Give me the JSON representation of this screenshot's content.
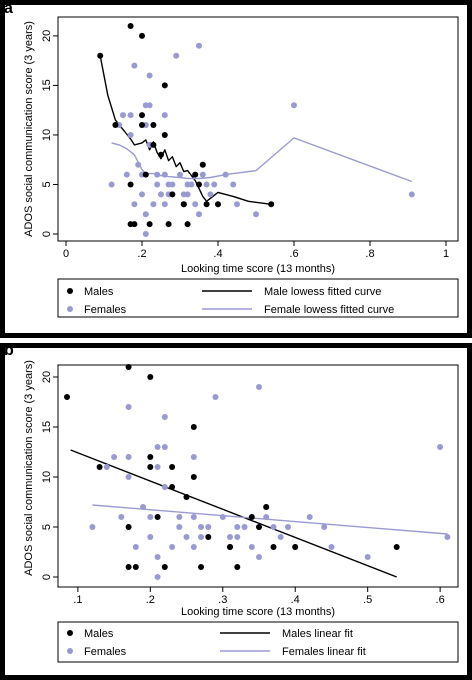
{
  "figure": {
    "panel_a_letter": "a",
    "panel_b_letter": "b"
  },
  "colors": {
    "male": "#000000",
    "female": "#9a9ad2",
    "frame": "#000000"
  },
  "chart_data": [
    {
      "type": "scatter",
      "panel": "a",
      "xlabel": "Looking time score (13 months)",
      "ylabel": "ADOS social communication score (3 years)",
      "xlim": [
        0,
        1
      ],
      "ylim": [
        0,
        21
      ],
      "xticks": [
        0,
        0.2,
        0.4,
        0.6,
        0.8,
        1
      ],
      "xtick_labels": [
        "0",
        ".2",
        ".4",
        ".6",
        ".8",
        "1"
      ],
      "yticks": [
        0,
        5,
        10,
        15,
        20
      ],
      "ytick_labels": [
        "0",
        "5",
        "10",
        "15",
        "20"
      ],
      "grid": false,
      "legend": {
        "placement": "bottom",
        "entries": [
          {
            "label": "Males",
            "kind": "marker",
            "series": "male"
          },
          {
            "label": "Male lowess fitted curve",
            "kind": "line",
            "series": "male"
          },
          {
            "label": "Females",
            "kind": "marker",
            "series": "female"
          },
          {
            "label": "Female lowess fitted curve",
            "kind": "line",
            "series": "female"
          }
        ]
      },
      "scatter_series": [
        {
          "name": "Males",
          "color_key": "male",
          "points": [
            [
              0.09,
              18
            ],
            [
              0.13,
              11
            ],
            [
              0.17,
              21
            ],
            [
              0.17,
              5
            ],
            [
              0.17,
              1
            ],
            [
              0.18,
              1
            ],
            [
              0.2,
              20
            ],
            [
              0.2,
              12
            ],
            [
              0.2,
              11
            ],
            [
              0.21,
              6
            ],
            [
              0.22,
              1
            ],
            [
              0.23,
              11
            ],
            [
              0.23,
              9
            ],
            [
              0.25,
              8
            ],
            [
              0.26,
              15
            ],
            [
              0.26,
              10
            ],
            [
              0.27,
              1
            ],
            [
              0.28,
              4
            ],
            [
              0.31,
              3
            ],
            [
              0.31,
              3
            ],
            [
              0.32,
              1
            ],
            [
              0.34,
              6
            ],
            [
              0.35,
              5
            ],
            [
              0.36,
              7
            ],
            [
              0.37,
              3
            ],
            [
              0.4,
              3
            ],
            [
              0.54,
              3
            ]
          ]
        },
        {
          "name": "Females",
          "color_key": "female",
          "points": [
            [
              0.12,
              5
            ],
            [
              0.14,
              11
            ],
            [
              0.15,
              12
            ],
            [
              0.16,
              6
            ],
            [
              0.17,
              12
            ],
            [
              0.17,
              10
            ],
            [
              0.18,
              17
            ],
            [
              0.18,
              3
            ],
            [
              0.19,
              7
            ],
            [
              0.2,
              4
            ],
            [
              0.2,
              6
            ],
            [
              0.21,
              2
            ],
            [
              0.21,
              0
            ],
            [
              0.21,
              13
            ],
            [
              0.21,
              11
            ],
            [
              0.22,
              16
            ],
            [
              0.22,
              9
            ],
            [
              0.22,
              13
            ],
            [
              0.23,
              3
            ],
            [
              0.24,
              6
            ],
            [
              0.24,
              5
            ],
            [
              0.25,
              8
            ],
            [
              0.25,
              4
            ],
            [
              0.26,
              12
            ],
            [
              0.26,
              3
            ],
            [
              0.26,
              6
            ],
            [
              0.27,
              5
            ],
            [
              0.27,
              4
            ],
            [
              0.28,
              5
            ],
            [
              0.29,
              18
            ],
            [
              0.3,
              6
            ],
            [
              0.31,
              4
            ],
            [
              0.32,
              4
            ],
            [
              0.32,
              5
            ],
            [
              0.33,
              5
            ],
            [
              0.34,
              3
            ],
            [
              0.35,
              19
            ],
            [
              0.35,
              2
            ],
            [
              0.36,
              6
            ],
            [
              0.36,
              7
            ],
            [
              0.37,
              5
            ],
            [
              0.38,
              4
            ],
            [
              0.39,
              5
            ],
            [
              0.4,
              3
            ],
            [
              0.42,
              6
            ],
            [
              0.44,
              5
            ],
            [
              0.45,
              3
            ],
            [
              0.5,
              2
            ],
            [
              0.6,
              13
            ],
            [
              0.91,
              4
            ]
          ]
        }
      ],
      "line_series": [
        {
          "name": "Male lowess fitted curve",
          "color_key": "male",
          "points": [
            [
              0.09,
              18
            ],
            [
              0.11,
              14
            ],
            [
              0.13,
              11.5
            ],
            [
              0.17,
              9.6
            ],
            [
              0.18,
              9
            ],
            [
              0.2,
              9.2
            ],
            [
              0.21,
              9.5
            ],
            [
              0.22,
              8.5
            ],
            [
              0.23,
              9.3
            ],
            [
              0.24,
              8.2
            ],
            [
              0.25,
              7.6
            ],
            [
              0.26,
              8.5
            ],
            [
              0.27,
              7.4
            ],
            [
              0.28,
              7.8
            ],
            [
              0.29,
              6.8
            ],
            [
              0.3,
              7.2
            ],
            [
              0.31,
              6.3
            ],
            [
              0.32,
              6.4
            ],
            [
              0.34,
              5.4
            ],
            [
              0.35,
              4.6
            ],
            [
              0.36,
              3.8
            ],
            [
              0.37,
              3.3
            ],
            [
              0.38,
              3.6
            ],
            [
              0.4,
              4.2
            ],
            [
              0.44,
              3.8
            ],
            [
              0.48,
              3.3
            ],
            [
              0.54,
              3
            ]
          ]
        },
        {
          "name": "Female lowess fitted curve",
          "color_key": "female",
          "points": [
            [
              0.12,
              9.2
            ],
            [
              0.14,
              9
            ],
            [
              0.16,
              8.6
            ],
            [
              0.18,
              8
            ],
            [
              0.2,
              6.5
            ],
            [
              0.21,
              6.1
            ],
            [
              0.23,
              6.1
            ],
            [
              0.25,
              5.9
            ],
            [
              0.27,
              5.8
            ],
            [
              0.3,
              5.7
            ],
            [
              0.32,
              5.6
            ],
            [
              0.35,
              5.6
            ],
            [
              0.38,
              5.7
            ],
            [
              0.42,
              6
            ],
            [
              0.46,
              6.2
            ],
            [
              0.5,
              6.4
            ],
            [
              0.6,
              9.7
            ],
            [
              0.91,
              5.3
            ]
          ]
        }
      ]
    },
    {
      "type": "scatter",
      "panel": "b",
      "xlabel": "Looking time score (13 months)",
      "ylabel": "ADOS social communication score (3 years)",
      "xlim": [
        0.085,
        0.615
      ],
      "ylim": [
        0,
        21
      ],
      "xticks": [
        0.1,
        0.2,
        0.3,
        0.4,
        0.5,
        0.6
      ],
      "xtick_labels": [
        ".1",
        ".2",
        ".3",
        ".4",
        ".5",
        ".6"
      ],
      "yticks": [
        0,
        5,
        10,
        15,
        20
      ],
      "ytick_labels": [
        "0",
        "5",
        "10",
        "15",
        "20"
      ],
      "grid": false,
      "legend": {
        "placement": "bottom",
        "entries": [
          {
            "label": "Males",
            "kind": "marker",
            "series": "male"
          },
          {
            "label": "Males linear fit",
            "kind": "line",
            "series": "male"
          },
          {
            "label": "Females",
            "kind": "marker",
            "series": "female"
          },
          {
            "label": "Females linear fit",
            "kind": "line",
            "series": "female"
          }
        ]
      },
      "scatter_series": [
        {
          "name": "Males",
          "color_key": "male",
          "points": [
            [
              0.085,
              18
            ],
            [
              0.13,
              11
            ],
            [
              0.17,
              21
            ],
            [
              0.17,
              5
            ],
            [
              0.17,
              1
            ],
            [
              0.18,
              1
            ],
            [
              0.2,
              20
            ],
            [
              0.2,
              12
            ],
            [
              0.2,
              11
            ],
            [
              0.21,
              6
            ],
            [
              0.22,
              1
            ],
            [
              0.23,
              11
            ],
            [
              0.23,
              9
            ],
            [
              0.25,
              8
            ],
            [
              0.26,
              15
            ],
            [
              0.26,
              10
            ],
            [
              0.27,
              1
            ],
            [
              0.28,
              4
            ],
            [
              0.31,
              3
            ],
            [
              0.31,
              3
            ],
            [
              0.32,
              1
            ],
            [
              0.34,
              6
            ],
            [
              0.35,
              5
            ],
            [
              0.36,
              7
            ],
            [
              0.37,
              3
            ],
            [
              0.4,
              3
            ],
            [
              0.54,
              3
            ]
          ]
        },
        {
          "name": "Females",
          "color_key": "female",
          "points": [
            [
              0.12,
              5
            ],
            [
              0.14,
              11
            ],
            [
              0.15,
              12
            ],
            [
              0.16,
              6
            ],
            [
              0.17,
              12
            ],
            [
              0.17,
              10
            ],
            [
              0.17,
              17
            ],
            [
              0.18,
              3
            ],
            [
              0.19,
              7
            ],
            [
              0.2,
              4
            ],
            [
              0.2,
              6
            ],
            [
              0.21,
              2
            ],
            [
              0.21,
              0
            ],
            [
              0.21,
              13
            ],
            [
              0.21,
              11
            ],
            [
              0.22,
              16
            ],
            [
              0.22,
              9
            ],
            [
              0.22,
              13
            ],
            [
              0.23,
              3
            ],
            [
              0.24,
              6
            ],
            [
              0.24,
              5
            ],
            [
              0.25,
              8
            ],
            [
              0.25,
              4
            ],
            [
              0.26,
              12
            ],
            [
              0.26,
              3
            ],
            [
              0.26,
              6
            ],
            [
              0.27,
              5
            ],
            [
              0.27,
              4
            ],
            [
              0.28,
              5
            ],
            [
              0.29,
              18
            ],
            [
              0.3,
              6
            ],
            [
              0.31,
              4
            ],
            [
              0.32,
              4
            ],
            [
              0.32,
              5
            ],
            [
              0.33,
              5
            ],
            [
              0.34,
              3
            ],
            [
              0.35,
              19
            ],
            [
              0.35,
              2
            ],
            [
              0.36,
              6
            ],
            [
              0.36,
              7
            ],
            [
              0.37,
              5
            ],
            [
              0.38,
              4
            ],
            [
              0.39,
              5
            ],
            [
              0.4,
              3
            ],
            [
              0.42,
              6
            ],
            [
              0.44,
              5
            ],
            [
              0.45,
              3
            ],
            [
              0.5,
              2
            ],
            [
              0.6,
              13
            ],
            [
              0.61,
              4
            ]
          ]
        }
      ],
      "line_series": [
        {
          "name": "Males linear fit",
          "color_key": "male",
          "points": [
            [
              0.09,
              12.7
            ],
            [
              0.54,
              0
            ]
          ]
        },
        {
          "name": "Females linear fit",
          "color_key": "female",
          "points": [
            [
              0.12,
              7.2
            ],
            [
              0.61,
              4.3
            ]
          ]
        }
      ]
    }
  ]
}
